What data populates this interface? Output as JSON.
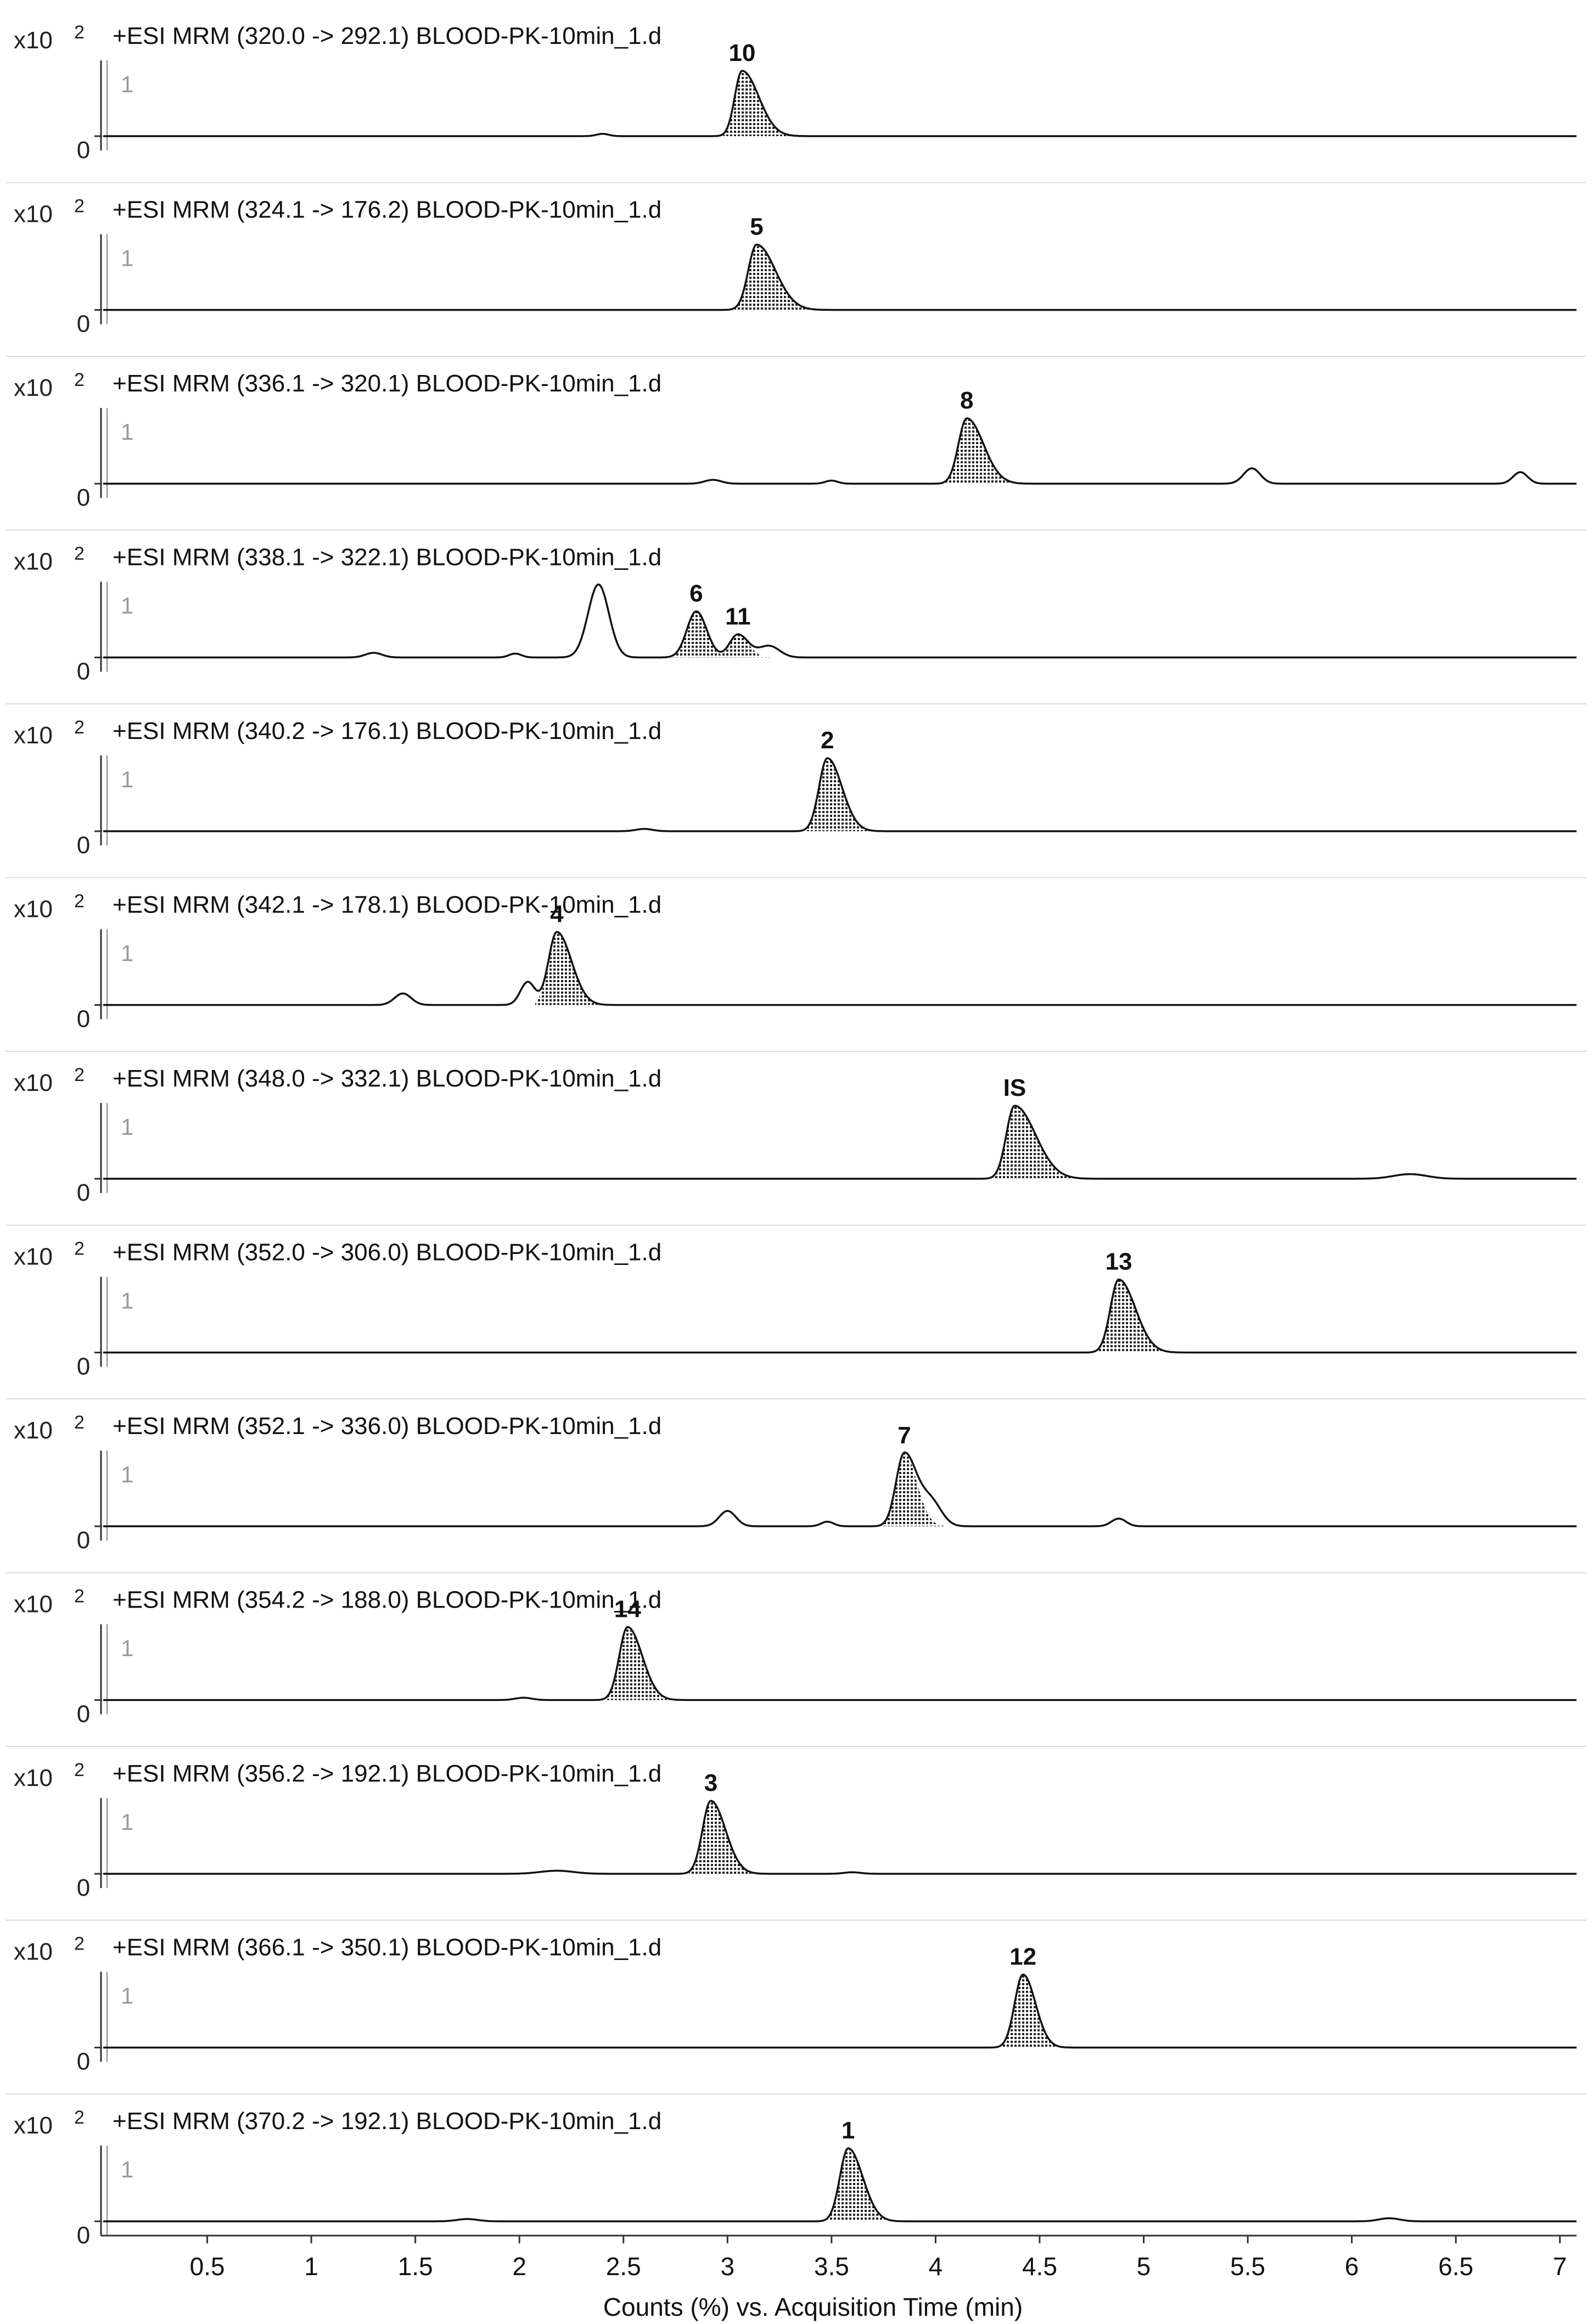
{
  "chart_data": {
    "type": "line",
    "xlabel": "Counts (%) vs. Acquisition Time (min)",
    "xlim": [
      0,
      7.08
    ],
    "xticks": [
      0.5,
      1,
      1.5,
      2,
      2.5,
      3,
      3.5,
      4,
      4.5,
      5,
      5.5,
      6,
      6.5,
      7
    ],
    "xtick_labels": [
      "0.5",
      "1",
      "1.5",
      "2",
      "2.5",
      "3",
      "3.5",
      "4",
      "4.5",
      "5",
      "5.5",
      "6",
      "6.5",
      "7"
    ],
    "y_multiplier": "x10",
    "y_exponent": "2",
    "ytick_labels": [
      "0",
      "1"
    ],
    "ylim": [
      0,
      1.5
    ],
    "baseline": 0.02,
    "panels": [
      {
        "title": "+ESI MRM (320.0 -> 292.1) BLOOD-PK-10min_1.d",
        "peaks": [
          {
            "label": "10",
            "rt": 3.07,
            "height": 0.85,
            "width": 0.035,
            "tail": 0.08,
            "shaded": true
          }
        ],
        "bumps": [
          {
            "rt": 2.4,
            "height": 0.03,
            "width": 0.03
          }
        ]
      },
      {
        "title": "+ESI MRM (324.1 -> 176.2) BLOOD-PK-10min_1.d",
        "peaks": [
          {
            "label": "5",
            "rt": 3.14,
            "height": 0.85,
            "width": 0.04,
            "tail": 0.09,
            "shaded": true
          }
        ],
        "bumps": []
      },
      {
        "title": "+ESI MRM (336.1 -> 320.1) BLOOD-PK-10min_1.d",
        "peaks": [
          {
            "label": "8",
            "rt": 4.15,
            "height": 0.85,
            "width": 0.04,
            "tail": 0.08,
            "shaded": true
          }
        ],
        "bumps": [
          {
            "rt": 2.93,
            "height": 0.05,
            "width": 0.04
          },
          {
            "rt": 3.5,
            "height": 0.04,
            "width": 0.03
          },
          {
            "rt": 5.52,
            "height": 0.2,
            "width": 0.04
          },
          {
            "rt": 6.81,
            "height": 0.15,
            "width": 0.035
          }
        ]
      },
      {
        "title": "+ESI MRM (338.1 -> 322.1) BLOOD-PK-10min_1.d",
        "peaks": [
          {
            "label": "6",
            "rt": 2.85,
            "height": 0.6,
            "width": 0.045,
            "tail": 0.05,
            "shaded": true
          },
          {
            "label": "11",
            "rt": 3.05,
            "height": 0.3,
            "width": 0.04,
            "tail": 0.05,
            "shaded": true
          }
        ],
        "bumps": [
          {
            "rt": 2.38,
            "height": 0.95,
            "width": 0.05
          },
          {
            "rt": 1.3,
            "height": 0.06,
            "width": 0.04
          },
          {
            "rt": 1.98,
            "height": 0.05,
            "width": 0.03
          },
          {
            "rt": 3.2,
            "height": 0.15,
            "width": 0.05
          }
        ]
      },
      {
        "title": "+ESI MRM (340.2 -> 176.1) BLOOD-PK-10min_1.d",
        "peaks": [
          {
            "label": "2",
            "rt": 3.48,
            "height": 0.95,
            "width": 0.04,
            "tail": 0.07,
            "shaded": true
          }
        ],
        "bumps": [
          {
            "rt": 2.6,
            "height": 0.03,
            "width": 0.04
          }
        ]
      },
      {
        "title": "+ESI MRM (342.1 -> 178.1) BLOOD-PK-10min_1.d",
        "peaks": [
          {
            "label": "4",
            "rt": 2.18,
            "height": 0.95,
            "width": 0.04,
            "tail": 0.07,
            "shaded": true
          }
        ],
        "bumps": [
          {
            "rt": 1.44,
            "height": 0.15,
            "width": 0.04
          },
          {
            "rt": 2.04,
            "height": 0.3,
            "width": 0.035
          }
        ]
      },
      {
        "title": "+ESI MRM (348.0 -> 332.1) BLOOD-PK-10min_1.d",
        "peaks": [
          {
            "label": "IS",
            "rt": 4.38,
            "height": 0.95,
            "width": 0.04,
            "tail": 0.1,
            "shaded": true
          }
        ],
        "bumps": [
          {
            "rt": 6.28,
            "height": 0.06,
            "width": 0.08
          }
        ]
      },
      {
        "title": "+ESI MRM (352.0 -> 306.0) BLOOD-PK-10min_1.d",
        "peaks": [
          {
            "label": "13",
            "rt": 4.88,
            "height": 0.95,
            "width": 0.04,
            "tail": 0.08,
            "shaded": true
          }
        ],
        "bumps": []
      },
      {
        "title": "+ESI MRM (352.1 -> 336.0) BLOOD-PK-10min_1.d",
        "peaks": [
          {
            "label": "7",
            "rt": 3.85,
            "height": 0.95,
            "width": 0.04,
            "tail": 0.06,
            "shaded": true
          }
        ],
        "bumps": [
          {
            "rt": 3.0,
            "height": 0.2,
            "width": 0.04
          },
          {
            "rt": 3.98,
            "height": 0.3,
            "width": 0.05
          },
          {
            "rt": 3.48,
            "height": 0.06,
            "width": 0.03
          },
          {
            "rt": 4.88,
            "height": 0.1,
            "width": 0.035
          }
        ]
      },
      {
        "title": "+ESI MRM (354.2 -> 188.0) BLOOD-PK-10min_1.d",
        "peaks": [
          {
            "label": "14",
            "rt": 2.52,
            "height": 0.95,
            "width": 0.04,
            "tail": 0.07,
            "shaded": true
          }
        ],
        "bumps": [
          {
            "rt": 2.02,
            "height": 0.03,
            "width": 0.04
          }
        ]
      },
      {
        "title": "+ESI MRM (356.2 -> 192.1) BLOOD-PK-10min_1.d",
        "peaks": [
          {
            "label": "3",
            "rt": 2.92,
            "height": 0.95,
            "width": 0.04,
            "tail": 0.07,
            "shaded": true
          }
        ],
        "bumps": [
          {
            "rt": 2.18,
            "height": 0.04,
            "width": 0.08
          },
          {
            "rt": 3.6,
            "height": 0.02,
            "width": 0.04
          }
        ]
      },
      {
        "title": "+ESI MRM (366.1 -> 350.1) BLOOD-PK-10min_1.d",
        "peaks": [
          {
            "label": "12",
            "rt": 4.42,
            "height": 0.95,
            "width": 0.04,
            "tail": 0.06,
            "shaded": true
          }
        ],
        "bumps": []
      },
      {
        "title": "+ESI MRM (370.2 -> 192.1) BLOOD-PK-10min_1.d",
        "peaks": [
          {
            "label": "1",
            "rt": 3.58,
            "height": 0.95,
            "width": 0.04,
            "tail": 0.07,
            "shaded": true
          }
        ],
        "bumps": [
          {
            "rt": 1.75,
            "height": 0.03,
            "width": 0.05
          },
          {
            "rt": 6.18,
            "height": 0.04,
            "width": 0.05
          }
        ]
      }
    ]
  }
}
